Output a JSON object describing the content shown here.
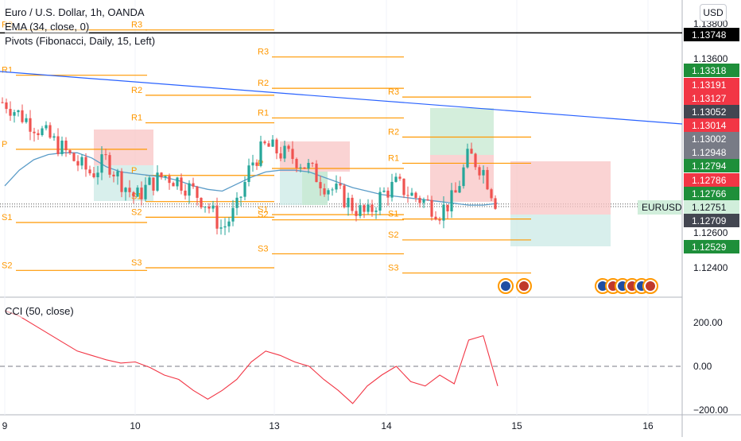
{
  "legend": {
    "title": "Euro / U.S. Dollar, 1h, OANDA",
    "ema": "EMA (34, close, 0)",
    "pivots": "Pivots (Fibonacci, Daily, 15, Left)",
    "cci": "CCI (50, close)"
  },
  "currency_button": "USD",
  "symbol_tag": "EURUSD",
  "colors": {
    "up": "#26a69a",
    "down": "#ef5350",
    "pivot": "#ff9800",
    "ema": "#5b9cc8",
    "trendline": "#2962ff",
    "cci": "#f23645",
    "box_red": "#f8c4c4",
    "box_green": "#c5e8d0",
    "box_teal": "#cbe9e6"
  },
  "price_scale": {
    "ticks": [
      "1.13800",
      "1.13600",
      "1.12600",
      "1.12400"
    ],
    "labels": [
      {
        "text": "1.13748",
        "bg": "#000000",
        "fg": "#ffffff"
      },
      {
        "text": "1.13318",
        "bg": "#1e8f3a",
        "fg": "#ffffff"
      },
      {
        "text": "1.13191",
        "bg": "#f23645",
        "fg": "#ffffff"
      },
      {
        "text": "1.13127",
        "bg": "#f23645",
        "fg": "#ffffff"
      },
      {
        "text": "1.13052",
        "bg": "#434651",
        "fg": "#ffffff"
      },
      {
        "text": "1.13014",
        "bg": "#f23645",
        "fg": "#ffffff"
      },
      {
        "text": "1.13002",
        "bg": "#787b86",
        "fg": "#ffffff"
      },
      {
        "text": "1.12948",
        "bg": "#787b86",
        "fg": "#ffffff"
      },
      {
        "text": "1.12794",
        "bg": "#1e8f3a",
        "fg": "#ffffff"
      },
      {
        "text": "1.12786",
        "bg": "#f23645",
        "fg": "#ffffff"
      },
      {
        "text": "1.12766",
        "bg": "#1e8f3a",
        "fg": "#ffffff"
      },
      {
        "text": "1.12751",
        "bg": "#d1eedb",
        "fg": "#131722"
      },
      {
        "text": "1.12709",
        "bg": "#434651",
        "fg": "#ffffff"
      },
      {
        "text": "1.12529",
        "bg": "#1e8f3a",
        "fg": "#ffffff"
      }
    ]
  },
  "cci_scale": {
    "ticks": [
      "200.00",
      "0.00",
      "−200.00"
    ]
  },
  "time_axis": [
    "9",
    "10",
    "13",
    "14",
    "15",
    "16"
  ],
  "pivot_sets": [
    {
      "labels": [
        {
          "t": "R2",
          "p": 1.13765
        },
        {
          "t": "R1",
          "p": 1.13505
        },
        {
          "t": "P",
          "p": 1.1308
        },
        {
          "t": "S1",
          "p": 1.1266
        },
        {
          "t": "S2",
          "p": 1.12385
        }
      ]
    },
    {
      "labels": [
        {
          "t": "R3",
          "p": 1.13765
        },
        {
          "t": "R2",
          "p": 1.1339
        },
        {
          "t": "R1",
          "p": 1.13232
        },
        {
          "t": "P",
          "p": 1.1293
        },
        {
          "t": "S1",
          "p": 1.1278
        },
        {
          "t": "S2",
          "p": 1.1269
        },
        {
          "t": "S3",
          "p": 1.124
        }
      ]
    },
    {
      "labels": [
        {
          "t": "R3",
          "p": 1.1361
        },
        {
          "t": "R2",
          "p": 1.1343
        },
        {
          "t": "R1",
          "p": 1.1326
        },
        {
          "t": "P",
          "p": 1.1297
        },
        {
          "t": "S1",
          "p": 1.12705
        },
        {
          "t": "S2",
          "p": 1.12675
        },
        {
          "t": "S3",
          "p": 1.1248
        }
      ]
    },
    {
      "labels": [
        {
          "t": "R3",
          "p": 1.1338
        },
        {
          "t": "R2",
          "p": 1.1315
        },
        {
          "t": "R1",
          "p": 1.13
        },
        {
          "t": "S1",
          "p": 1.1268
        },
        {
          "t": "S2",
          "p": 1.1256
        },
        {
          "t": "S3",
          "p": 1.1237
        }
      ]
    }
  ],
  "ema_values": [
    1.1287,
    1.1296,
    1.1302,
    1.1305,
    1.1306,
    1.1306,
    1.1303,
    1.1298,
    1.1295,
    1.1294,
    1.1293,
    1.1292,
    1.129,
    1.1287,
    1.1285,
    1.1284,
    1.1288,
    1.1292,
    1.1295,
    1.1296,
    1.1296,
    1.1295,
    1.1292,
    1.1289,
    1.1286,
    1.1284,
    1.1282,
    1.1281,
    1.128,
    1.1279,
    1.1278,
    1.1277,
    1.1276,
    1.1276,
    1.1277
  ],
  "close_values": [
    1.1335,
    1.1328,
    1.1322,
    1.1315,
    1.1308,
    1.13,
    1.1294,
    1.1302,
    1.129,
    1.128,
    1.1288,
    1.1293,
    1.129,
    1.1284,
    1.1276,
    1.1262,
    1.1274,
    1.13,
    1.131,
    1.1306,
    1.1303,
    1.1297,
    1.1288,
    1.1283,
    1.1275,
    1.127,
    1.1282,
    1.1288,
    1.1282,
    1.1278,
    1.1272,
    1.128,
    1.1305,
    1.1296,
    1.1275
  ],
  "cci_values": [
    255,
    230,
    190,
    150,
    110,
    70,
    50,
    30,
    15,
    20,
    -5,
    -40,
    -60,
    -110,
    -150,
    -110,
    -60,
    20,
    70,
    50,
    20,
    0,
    -60,
    -110,
    -170,
    -90,
    -40,
    0,
    -70,
    -90,
    -40,
    -80,
    120,
    140,
    -90
  ]
}
